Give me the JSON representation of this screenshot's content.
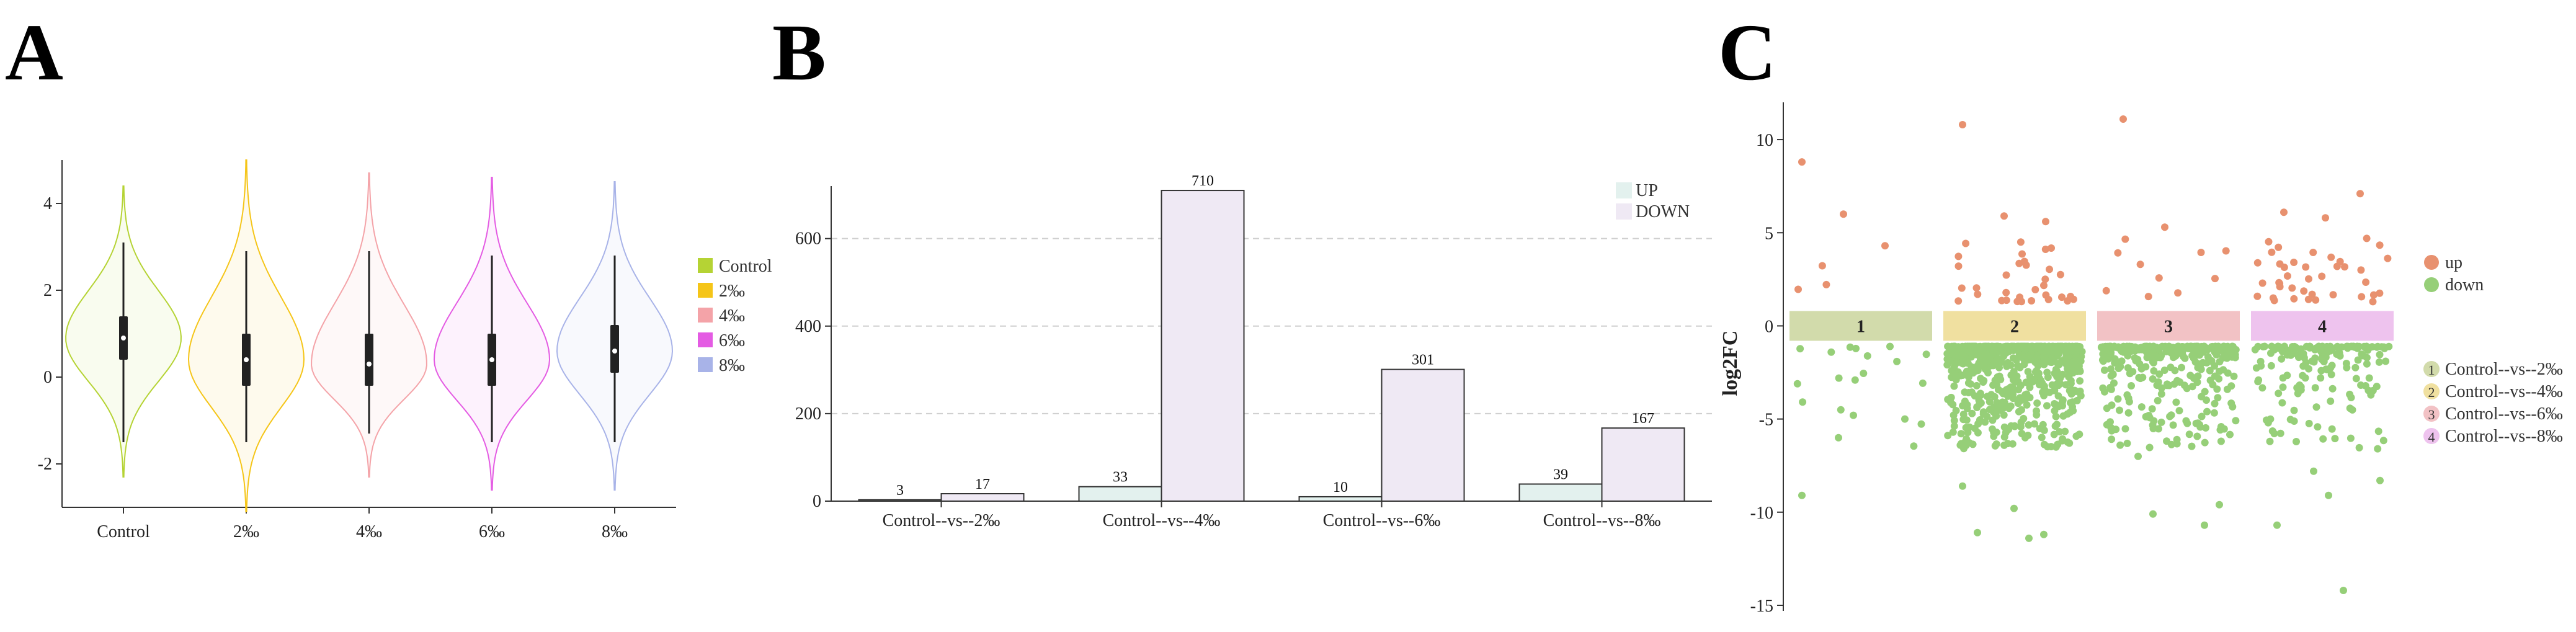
{
  "panels": {
    "A": {
      "letter": "A"
    },
    "B": {
      "letter": "B"
    },
    "C": {
      "letter": "C"
    }
  },
  "chart_data": [
    {
      "type": "violin",
      "panel": "A",
      "categories": [
        "Control",
        "2‰",
        "4‰",
        "6‰",
        "8‰"
      ],
      "ylim": [
        -3,
        5
      ],
      "yticks": [
        -2,
        0,
        2,
        4
      ],
      "colors": [
        "#b5d334",
        "#f5c518",
        "#f4a3a8",
        "#e45be3",
        "#a8b3e8"
      ],
      "legend": [
        "Control",
        "2‰",
        "4‰",
        "6‰",
        "8‰"
      ],
      "legend_position": "right",
      "stats": [
        {
          "min": -2.3,
          "q1": 0.4,
          "median": 0.9,
          "q3": 1.4,
          "max": 4.4,
          "whisker_low": -1.5,
          "whisker_high": 3.1
        },
        {
          "min": -3.1,
          "q1": -0.2,
          "median": 0.4,
          "q3": 1.0,
          "max": 5.0,
          "whisker_low": -1.5,
          "whisker_high": 2.9
        },
        {
          "min": -2.3,
          "q1": -0.2,
          "median": 0.3,
          "q3": 1.0,
          "max": 4.7,
          "whisker_low": -1.3,
          "whisker_high": 2.9
        },
        {
          "min": -2.6,
          "q1": -0.2,
          "median": 0.4,
          "q3": 1.0,
          "max": 4.6,
          "whisker_low": -1.5,
          "whisker_high": 2.8
        },
        {
          "min": -2.6,
          "q1": 0.1,
          "median": 0.6,
          "q3": 1.2,
          "max": 4.5,
          "whisker_low": -1.5,
          "whisker_high": 2.8
        }
      ]
    },
    {
      "type": "bar",
      "panel": "B",
      "categories": [
        "Control--vs--2‰",
        "Control--vs--4‰",
        "Control--vs--6‰",
        "Control--vs--8‰"
      ],
      "series": [
        {
          "name": "UP",
          "values": [
            3,
            33,
            10,
            39
          ],
          "color": "#e3f1ee"
        },
        {
          "name": "DOWN",
          "values": [
            17,
            710,
            301,
            167
          ],
          "color": "#efe9f4"
        }
      ],
      "ylim": [
        0,
        720
      ],
      "yticks": [
        0,
        200,
        400,
        600
      ],
      "grid": "dashed-horizontal",
      "legend_position": "top-right"
    },
    {
      "type": "scatter",
      "panel": "C",
      "ylabel": "log2FC",
      "ylim": [
        -15.3,
        12
      ],
      "yticks": [
        -15,
        -10,
        -5,
        0,
        5,
        10
      ],
      "groups": [
        {
          "id": "1",
          "label": "Control--vs--2‰",
          "color": "#d2dbab"
        },
        {
          "id": "2",
          "label": "Control--vs--4‰",
          "color": "#f0e0a0"
        },
        {
          "id": "3",
          "label": "Control--vs--6‰",
          "color": "#f2c2c5"
        },
        {
          "id": "4",
          "label": "Control--vs--8‰",
          "color": "#eec3ee"
        }
      ],
      "series": [
        {
          "name": "up",
          "color": "#e8916f"
        },
        {
          "name": "down",
          "color": "#96cf78"
        }
      ],
      "counts": {
        "up": [
          3,
          33,
          10,
          39
        ],
        "down": [
          17,
          710,
          301,
          167
        ]
      },
      "highlight_up": [
        {
          "group": 1,
          "y": 8.8
        },
        {
          "group": 1,
          "y": 6.0
        },
        {
          "group": 1,
          "y": 4.3
        },
        {
          "group": 2,
          "y": 10.8
        },
        {
          "group": 2,
          "y": 5.9
        },
        {
          "group": 2,
          "y": 5.6
        },
        {
          "group": 3,
          "y": 11.1
        },
        {
          "group": 3,
          "y": 5.3
        },
        {
          "group": 4,
          "y": 7.1
        },
        {
          "group": 4,
          "y": 6.1
        },
        {
          "group": 4,
          "y": 5.8
        }
      ],
      "highlight_down": [
        {
          "group": 1,
          "y": -9.1
        },
        {
          "group": 1,
          "y": -4.8
        },
        {
          "group": 1,
          "y": -5.0
        },
        {
          "group": 1,
          "y": -6.0
        },
        {
          "group": 2,
          "y": -11.2
        },
        {
          "group": 2,
          "y": -11.1
        },
        {
          "group": 2,
          "y": -11.4
        },
        {
          "group": 2,
          "y": -8.6
        },
        {
          "group": 2,
          "y": -9.8
        },
        {
          "group": 3,
          "y": -9.6
        },
        {
          "group": 3,
          "y": -10.1
        },
        {
          "group": 3,
          "y": -10.7
        },
        {
          "group": 3,
          "y": -7.0
        },
        {
          "group": 4,
          "y": -14.2
        },
        {
          "group": 4,
          "y": -10.7
        },
        {
          "group": 4,
          "y": -9.1
        },
        {
          "group": 4,
          "y": -8.3
        },
        {
          "group": 4,
          "y": -7.8
        }
      ],
      "legend_position": "right"
    }
  ]
}
